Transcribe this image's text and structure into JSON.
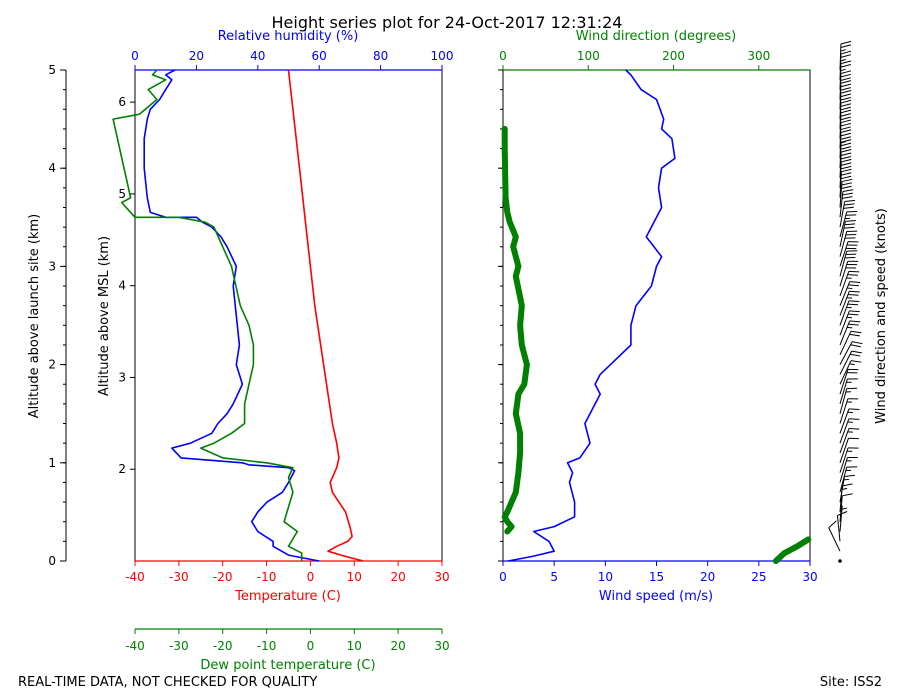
{
  "title": "Height series plot for 24-Oct-2017 12:31:24",
  "footer": {
    "left": "REAL-TIME DATA, NOT CHECKED FOR QUALITY",
    "right": "Site: ISS2"
  },
  "colors": {
    "temperature": "#ff0000",
    "humidity": "#0000ff",
    "dewpoint": "#008000",
    "wind_speed": "#0000ff",
    "wind_dir": "#008000",
    "barbs": "#000000"
  },
  "chart_data": [
    {
      "type": "line",
      "panel": "thermodynamic",
      "title": "Height series plot for 24-Oct-2017 12:31:24",
      "axes": {
        "temperature": {
          "label": "Temperature (C)",
          "range": [
            -40,
            30
          ],
          "ticks": [
            -40,
            -30,
            -20,
            -10,
            0,
            10,
            20,
            30
          ]
        },
        "dewpoint": {
          "label": "Dew point temperature (C)",
          "range": [
            -40,
            30
          ],
          "ticks": [
            -40,
            -30,
            -20,
            -10,
            0,
            10,
            20,
            30
          ]
        },
        "humidity": {
          "label": "Relative humidity (%)",
          "range": [
            0,
            100
          ],
          "ticks": [
            0,
            20,
            40,
            60,
            80,
            100
          ]
        },
        "altitude_agl": {
          "label": "Altitude above launch site (km)",
          "range": [
            0,
            5
          ],
          "ticks": [
            0,
            1,
            2,
            3,
            4,
            5
          ]
        },
        "altitude_msl": {
          "label": "Altitude above MSL (km)",
          "range": [
            1.0,
            6.35
          ],
          "ticks": [
            2,
            3,
            4,
            5,
            6
          ]
        }
      },
      "series": [
        {
          "name": "Temperature",
          "x_axis": "temperature",
          "points": [
            [
              12,
              0
            ],
            [
              9.5,
              0.03
            ],
            [
              7,
              0.06
            ],
            [
              4,
              0.1
            ],
            [
              6,
              0.15
            ],
            [
              8.5,
              0.2
            ],
            [
              9.5,
              0.25
            ],
            [
              9,
              0.35
            ],
            [
              8,
              0.5
            ],
            [
              6.5,
              0.6
            ],
            [
              5,
              0.7
            ],
            [
              4.5,
              0.8
            ],
            [
              6,
              0.95
            ],
            [
              6.5,
              1.05
            ],
            [
              6,
              1.2
            ],
            [
              5,
              1.4
            ],
            [
              4,
              1.7
            ],
            [
              3,
              2.0
            ],
            [
              2,
              2.3
            ],
            [
              1,
              2.6
            ],
            [
              0,
              3.0
            ],
            [
              -1,
              3.4
            ],
            [
              -2,
              3.8
            ],
            [
              -3,
              4.2
            ],
            [
              -4,
              4.6
            ],
            [
              -5,
              5.0
            ]
          ]
        },
        {
          "name": "Relative humidity",
          "x_axis": "humidity",
          "points": [
            [
              60,
              0
            ],
            [
              55,
              0.03
            ],
            [
              50,
              0.06
            ],
            [
              45,
              0.15
            ],
            [
              45,
              0.2
            ],
            [
              40,
              0.3
            ],
            [
              38,
              0.4
            ],
            [
              40,
              0.5
            ],
            [
              43,
              0.6
            ],
            [
              48,
              0.7
            ],
            [
              50,
              0.8
            ],
            [
              52,
              0.92
            ],
            [
              50,
              0.95
            ],
            [
              37,
              0.98
            ],
            [
              35,
              1.0
            ],
            [
              15,
              1.05
            ],
            [
              12,
              1.15
            ],
            [
              18,
              1.2
            ],
            [
              25,
              1.3
            ],
            [
              27,
              1.4
            ],
            [
              30,
              1.5
            ],
            [
              32,
              1.6
            ],
            [
              35,
              1.8
            ],
            [
              33,
              2.0
            ],
            [
              34,
              2.2
            ],
            [
              33,
              2.5
            ],
            [
              32,
              2.8
            ],
            [
              33,
              3.0
            ],
            [
              30,
              3.2
            ],
            [
              28,
              3.3
            ],
            [
              25,
              3.4
            ],
            [
              22,
              3.45
            ],
            [
              20,
              3.5
            ],
            [
              10,
              3.5
            ],
            [
              5,
              3.55
            ],
            [
              4,
              3.7
            ],
            [
              3,
              4.0
            ],
            [
              3,
              4.3
            ],
            [
              4,
              4.5
            ],
            [
              5,
              4.6
            ],
            [
              8,
              4.7
            ],
            [
              10,
              4.8
            ],
            [
              12,
              4.9
            ],
            [
              10,
              4.95
            ],
            [
              13,
              5.0
            ]
          ]
        },
        {
          "name": "Dew point temperature",
          "x_axis": "dewpoint",
          "points": [
            [
              -2,
              0
            ],
            [
              -2,
              0.08
            ],
            [
              -5,
              0.15
            ],
            [
              -3,
              0.3
            ],
            [
              -6,
              0.4
            ],
            [
              -5,
              0.55
            ],
            [
              -4,
              0.7
            ],
            [
              -5,
              0.85
            ],
            [
              -4,
              0.95
            ],
            [
              -10,
              1.0
            ],
            [
              -20,
              1.05
            ],
            [
              -25,
              1.15
            ],
            [
              -22,
              1.2
            ],
            [
              -18,
              1.3
            ],
            [
              -15,
              1.4
            ],
            [
              -15,
              1.6
            ],
            [
              -14,
              1.8
            ],
            [
              -13,
              2.0
            ],
            [
              -13,
              2.2
            ],
            [
              -14,
              2.4
            ],
            [
              -16,
              2.6
            ],
            [
              -17,
              2.8
            ],
            [
              -18,
              3.0
            ],
            [
              -20,
              3.2
            ],
            [
              -21,
              3.3
            ],
            [
              -22,
              3.4
            ],
            [
              -24,
              3.45
            ],
            [
              -30,
              3.5
            ],
            [
              -40,
              3.5
            ],
            [
              -43,
              3.65
            ],
            [
              -41,
              3.7
            ],
            [
              -45,
              4.5
            ],
            [
              -39,
              4.55
            ],
            [
              -35,
              4.7
            ],
            [
              -37,
              4.8
            ],
            [
              -33,
              4.9
            ],
            [
              -36,
              4.95
            ],
            [
              -35,
              5.0
            ]
          ]
        }
      ]
    },
    {
      "type": "line",
      "panel": "wind",
      "axes": {
        "wind_speed": {
          "label": "Wind speed (m/s)",
          "range": [
            0,
            30
          ],
          "ticks": [
            0,
            5,
            10,
            15,
            20,
            25,
            30
          ]
        },
        "wind_direction": {
          "label": "Wind direction (degrees)",
          "range": [
            0,
            360
          ],
          "ticks": [
            0,
            100,
            200,
            300
          ]
        },
        "barbs": {
          "label": "Wind direction and speed (knots)"
        }
      },
      "series": [
        {
          "name": "Wind speed",
          "x_axis": "wind_speed",
          "points": [
            [
              0.5,
              0
            ],
            [
              3,
              0.05
            ],
            [
              5,
              0.1
            ],
            [
              4.5,
              0.2
            ],
            [
              3,
              0.3
            ],
            [
              5,
              0.35
            ],
            [
              7,
              0.45
            ],
            [
              7,
              0.6
            ],
            [
              6.5,
              0.8
            ],
            [
              6.8,
              0.9
            ],
            [
              6.3,
              1.0
            ],
            [
              7.5,
              1.05
            ],
            [
              8.5,
              1.2
            ],
            [
              8,
              1.4
            ],
            [
              8.5,
              1.5
            ],
            [
              9.5,
              1.7
            ],
            [
              9,
              1.8
            ],
            [
              9.5,
              1.9
            ],
            [
              11,
              2.05
            ],
            [
              12.5,
              2.2
            ],
            [
              12.5,
              2.4
            ],
            [
              13,
              2.6
            ],
            [
              14.5,
              2.8
            ],
            [
              15,
              3.0
            ],
            [
              15.5,
              3.1
            ],
            [
              14,
              3.3
            ],
            [
              15,
              3.5
            ],
            [
              15.5,
              3.6
            ],
            [
              15.2,
              3.8
            ],
            [
              15.5,
              4.0
            ],
            [
              16.8,
              4.1
            ],
            [
              16.5,
              4.3
            ],
            [
              15.5,
              4.4
            ],
            [
              15.7,
              4.5
            ],
            [
              15,
              4.7
            ],
            [
              13.5,
              4.8
            ],
            [
              12.5,
              4.95
            ],
            [
              12,
              5.0
            ]
          ]
        },
        {
          "name": "Wind direction",
          "x_axis": "wind_direction",
          "points": [
            [
              320,
              0
            ],
            [
              330,
              0.08
            ],
            [
              345,
              0.15
            ],
            [
              358,
              0.22
            ],
            [
              5,
              0.3
            ],
            [
              10,
              0.35
            ],
            [
              5,
              0.4
            ],
            [
              2,
              0.45
            ],
            [
              5,
              0.5
            ],
            [
              15,
              0.7
            ],
            [
              18,
              0.9
            ],
            [
              20,
              1.1
            ],
            [
              20,
              1.3
            ],
            [
              15,
              1.5
            ],
            [
              18,
              1.7
            ],
            [
              25,
              1.8
            ],
            [
              28,
              2.0
            ],
            [
              22,
              2.2
            ],
            [
              20,
              2.4
            ],
            [
              22,
              2.6
            ],
            [
              15,
              2.9
            ],
            [
              18,
              3.0
            ],
            [
              12,
              3.2
            ],
            [
              15,
              3.3
            ],
            [
              8,
              3.45
            ],
            [
              5,
              3.55
            ],
            [
              3,
              3.7
            ],
            [
              2,
              4.2
            ],
            [
              2,
              4.4
            ]
          ]
        }
      ],
      "barb_altitudes_km": [
        0.0,
        0.1,
        0.2,
        0.3,
        0.4,
        0.5,
        0.6,
        0.7,
        0.8,
        0.9,
        1.0,
        1.1,
        1.2,
        1.3,
        1.4,
        1.5,
        1.6,
        1.7,
        1.8,
        1.9,
        2.0,
        2.1,
        2.2,
        2.3,
        2.4,
        2.5,
        2.6,
        2.7,
        2.8,
        2.9,
        3.0,
        3.1,
        3.2,
        3.3,
        3.4,
        3.5,
        3.6,
        3.7,
        3.8,
        3.9,
        4.0,
        4.1,
        4.2,
        4.3,
        4.4,
        4.5,
        4.6,
        4.7,
        4.8,
        4.9,
        5.0
      ]
    }
  ]
}
